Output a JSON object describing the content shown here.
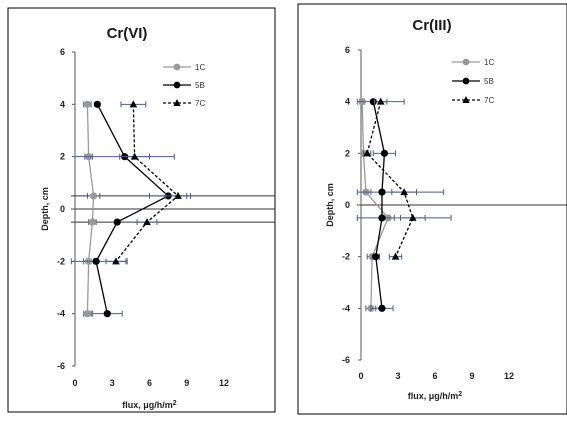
{
  "chart_data": [
    {
      "type": "line",
      "title": "Cr(VI)",
      "xlabel": "flux, μg/h/m",
      "xlabel_sup": "2",
      "ylabel": "Depth, cm",
      "xlim": [
        0,
        12
      ],
      "ylim": [
        -6,
        6
      ],
      "xticks": [
        "0",
        "3",
        "6",
        "9",
        "12"
      ],
      "yticks": [
        "6",
        "4",
        "2",
        "0",
        "-2",
        "-4",
        "-6"
      ],
      "reference_lines_y": [
        0.5,
        0,
        -0.5
      ],
      "legend_position": "top-right",
      "series": [
        {
          "name": "1C",
          "color": "#999999",
          "marker": "circle",
          "dash": "solid",
          "points": [
            [
              1.0,
              4
            ],
            [
              1.1,
              2
            ],
            [
              1.5,
              0.5
            ],
            [
              1.4,
              -0.5
            ],
            [
              1.1,
              -2
            ],
            [
              1.0,
              -4
            ]
          ],
          "xerr": [
            0.3,
            0.3,
            0.5,
            0.3,
            0.4,
            0.3
          ]
        },
        {
          "name": "5B",
          "color": "#000000",
          "marker": "circle",
          "dash": "solid",
          "points": [
            [
              1.8,
              4
            ],
            [
              4.0,
              2
            ],
            [
              7.5,
              0.5
            ],
            [
              3.4,
              -0.5
            ],
            [
              1.7,
              -2
            ],
            [
              2.6,
              -4
            ]
          ],
          "xerr": [
            0,
            4.0,
            1.5,
            0,
            2.5,
            1.2
          ]
        },
        {
          "name": "7C",
          "color": "#000000",
          "marker": "triangle",
          "dash": "dashed",
          "points": [
            [
              4.7,
              4
            ],
            [
              4.8,
              2
            ],
            [
              8.3,
              0.5
            ],
            [
              5.8,
              -0.5
            ],
            [
              3.3,
              -2
            ]
          ],
          "xerr": [
            1.0,
            1.2,
            1.0,
            0.8,
            0.8
          ]
        }
      ]
    },
    {
      "type": "line",
      "title": "Cr(III)",
      "xlabel": "flux, μg/h/m",
      "xlabel_sup": "2",
      "ylabel": "Depth, cm",
      "xlim": [
        0,
        12
      ],
      "ylim": [
        -6,
        6
      ],
      "xticks": [
        "0",
        "3",
        "6",
        "9",
        "12"
      ],
      "yticks": [
        "6",
        "4",
        "2",
        "0",
        "-2",
        "-4",
        "-6"
      ],
      "reference_lines_y": [
        0
      ],
      "legend_position": "top-right",
      "series": [
        {
          "name": "1C",
          "color": "#999999",
          "marker": "circle",
          "dash": "solid",
          "points": [
            [
              0.1,
              4
            ],
            [
              0.2,
              2
            ],
            [
              0.4,
              0.5
            ],
            [
              2.2,
              -0.5
            ],
            [
              0.9,
              -2
            ],
            [
              0.8,
              -4
            ]
          ],
          "xerr": [
            0.2,
            0.2,
            0.4,
            0.5,
            0.4,
            0.4
          ]
        },
        {
          "name": "5B",
          "color": "#000000",
          "marker": "circle",
          "dash": "solid",
          "points": [
            [
              1.0,
              4
            ],
            [
              1.9,
              2
            ],
            [
              1.7,
              0.5
            ],
            [
              1.7,
              -0.5
            ],
            [
              1.2,
              -2
            ],
            [
              1.7,
              -4
            ]
          ],
          "xerr": [
            2.5,
            0.9,
            5.0,
            5.6,
            0.3,
            0.9
          ]
        },
        {
          "name": "7C",
          "color": "#000000",
          "marker": "triangle",
          "dash": "dashed",
          "points": [
            [
              1.6,
              4
            ],
            [
              0.5,
              2
            ],
            [
              3.5,
              0.5
            ],
            [
              4.2,
              -0.5
            ],
            [
              2.8,
              -2
            ]
          ],
          "xerr": [
            0.5,
            0.3,
            1.0,
            1.0,
            0.5
          ]
        }
      ]
    }
  ]
}
